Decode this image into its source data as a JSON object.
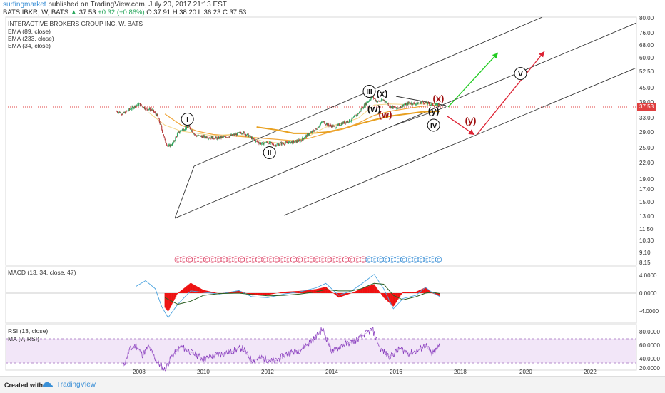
{
  "header": {
    "author": "surfingmarket",
    "published_text": "published on TradingView.com, July 20, 2017 21:13 EST",
    "symbol": "BATS:IBKR, W, BATS",
    "last": "37.53",
    "change": "+0.32 (+0.86%)",
    "open": "O:37.91",
    "high": "H:38.20",
    "low": "L:36.23",
    "close": "C:37.53"
  },
  "footer": {
    "created_with": "Created with",
    "brand": "TradingView"
  },
  "colors": {
    "candle_up": "#26a65b",
    "candle_down": "#b03030",
    "ema89": "#f0a63a",
    "ema233": "#e8a020",
    "ema34": "#f5d58a",
    "channel": "#333333",
    "green_arrow": "#22cc22",
    "red_arrow": "#dd2233",
    "wave_red": "#a01010",
    "macd_line": "#4aa3df",
    "signal_line": "#2a5e22",
    "hist": "#ee1111",
    "rsi_line": "#8a3fbf",
    "rsi_band": "#f2e6f8",
    "price_line": "#e04040",
    "last_tag": "#e04040"
  },
  "chart_data": [
    {
      "type": "candlestick",
      "title": "INTERACTIVE BROKERS GROUP INC, W, BATS",
      "indicators": [
        "EMA (89, close)",
        "EMA (233, close)",
        "EMA (34, close)"
      ],
      "y_scale": "log",
      "y_ticks": [
        "80.00",
        "76.00",
        "68.00",
        "60.00",
        "52.50",
        "45.00",
        "39.00",
        "33.00",
        "29.00",
        "25.00",
        "22.00",
        "19.00",
        "17.00",
        "15.00",
        "13.00",
        "11.50",
        "10.30",
        "9.10",
        "8.15"
      ],
      "x_ticks": [
        "2008",
        "2010",
        "2012",
        "2014",
        "2016",
        "2018",
        "2020",
        "2022"
      ],
      "last_price": "37.53",
      "price_path": [
        [
          2007.5,
          31
        ],
        [
          2007.7,
          29
        ],
        [
          2008.0,
          34
        ],
        [
          2008.2,
          37
        ],
        [
          2008.4,
          33
        ],
        [
          2008.6,
          32
        ],
        [
          2008.75,
          28
        ],
        [
          2008.9,
          20
        ],
        [
          2009.0,
          15
        ],
        [
          2009.1,
          13
        ],
        [
          2009.25,
          14
        ],
        [
          2009.4,
          18
        ],
        [
          2009.55,
          20
        ],
        [
          2009.75,
          21
        ],
        [
          2009.95,
          17
        ],
        [
          2010.3,
          16.5
        ],
        [
          2010.6,
          16
        ],
        [
          2010.9,
          16.5
        ],
        [
          2011.2,
          17.5
        ],
        [
          2011.4,
          18.5
        ],
        [
          2011.6,
          17
        ],
        [
          2011.8,
          15
        ],
        [
          2012.0,
          14
        ],
        [
          2012.2,
          14.5
        ],
        [
          2012.4,
          13.5
        ],
        [
          2012.6,
          14
        ],
        [
          2012.9,
          14.5
        ],
        [
          2013.2,
          15
        ],
        [
          2013.5,
          18
        ],
        [
          2013.7,
          20
        ],
        [
          2013.9,
          24
        ],
        [
          2014.1,
          22
        ],
        [
          2014.3,
          21
        ],
        [
          2014.5,
          23
        ],
        [
          2014.8,
          25
        ],
        [
          2015.0,
          29
        ],
        [
          2015.2,
          36
        ],
        [
          2015.45,
          44
        ],
        [
          2015.6,
          39
        ],
        [
          2015.8,
          41
        ],
        [
          2016.0,
          35
        ],
        [
          2016.2,
          33
        ],
        [
          2016.4,
          36
        ],
        [
          2016.6,
          38
        ],
        [
          2016.8,
          37
        ],
        [
          2017.0,
          39
        ],
        [
          2017.2,
          37
        ],
        [
          2017.4,
          36
        ],
        [
          2017.55,
          37.5
        ]
      ],
      "ema89": [
        [
          2009.0,
          29
        ],
        [
          2009.5,
          22
        ],
        [
          2010.0,
          19
        ],
        [
          2010.5,
          17.5
        ],
        [
          2011.0,
          17
        ],
        [
          2011.5,
          16.5
        ],
        [
          2012.0,
          16
        ],
        [
          2012.5,
          15.5
        ],
        [
          2013.0,
          15
        ],
        [
          2013.5,
          16
        ],
        [
          2014.0,
          18
        ],
        [
          2014.5,
          20
        ],
        [
          2015.0,
          23
        ],
        [
          2015.5,
          28
        ],
        [
          2016.0,
          31
        ],
        [
          2016.5,
          33
        ],
        [
          2017.0,
          35
        ],
        [
          2017.55,
          36
        ]
      ],
      "ema233": [
        [
          2011.85,
          21
        ],
        [
          2012.5,
          19.5
        ],
        [
          2013.0,
          18
        ],
        [
          2013.5,
          18
        ],
        [
          2014.0,
          18.5
        ],
        [
          2014.5,
          20
        ],
        [
          2015.0,
          22.5
        ],
        [
          2015.5,
          25
        ],
        [
          2016.0,
          27.5
        ],
        [
          2016.5,
          29
        ],
        [
          2017.0,
          30.5
        ],
        [
          2017.55,
          31
        ]
      ],
      "ema34": [
        [
          2008.5,
          30
        ],
        [
          2009.0,
          22
        ],
        [
          2009.5,
          19
        ],
        [
          2010.0,
          18
        ],
        [
          2010.5,
          17
        ],
        [
          2011.0,
          17.5
        ],
        [
          2011.5,
          17
        ],
        [
          2012.0,
          15
        ],
        [
          2012.5,
          14.2
        ],
        [
          2013.0,
          14.5
        ],
        [
          2013.5,
          17
        ],
        [
          2014.0,
          21
        ],
        [
          2014.5,
          23
        ],
        [
          2015.0,
          26
        ],
        [
          2015.5,
          36
        ],
        [
          2016.0,
          37
        ],
        [
          2016.5,
          36.5
        ],
        [
          2017.0,
          37
        ],
        [
          2017.55,
          37
        ]
      ],
      "wave_labels": [
        {
          "text": "I",
          "x": 2009.7,
          "y": 25.5,
          "color": "black",
          "circled": true
        },
        {
          "text": "II",
          "x": 2012.25,
          "y": 11.2,
          "color": "black",
          "circled": true
        },
        {
          "text": "III",
          "x": 2015.35,
          "y": 50.5,
          "color": "black",
          "circled": true
        },
        {
          "text": "(x)",
          "x": 2015.75,
          "y": 47.5,
          "color": "black",
          "circled": false
        },
        {
          "text": "(w)",
          "x": 2015.5,
          "y": 32.5,
          "color": "black",
          "circled": false
        },
        {
          "text": "(y)",
          "x": 2017.35,
          "y": 30.8,
          "color": "black",
          "circled": false
        },
        {
          "text": "(w)",
          "x": 2015.85,
          "y": 28.3,
          "color": "wave_red",
          "circled": false
        },
        {
          "text": "(x)",
          "x": 2017.5,
          "y": 42,
          "color": "wave_red",
          "circled": false
        },
        {
          "text": "(y)",
          "x": 2018.5,
          "y": 24.5,
          "color": "wave_red",
          "circled": false
        },
        {
          "text": "IV",
          "x": 2017.35,
          "y": 22,
          "color": "black",
          "circled": true
        },
        {
          "text": "V",
          "x": 2020.05,
          "y": 78,
          "color": "black",
          "circled": true
        }
      ],
      "event_badge_letter": "E",
      "events_x": [
        2009.4,
        2009.58,
        2009.76,
        2009.94,
        2010.12,
        2010.3,
        2010.48,
        2010.66,
        2010.84,
        2011.02,
        2011.2,
        2011.38,
        2011.56,
        2011.74,
        2011.92,
        2012.1,
        2012.28,
        2012.46,
        2012.64,
        2012.82,
        2013.0,
        2013.18,
        2013.36,
        2013.54,
        2013.72,
        2013.9,
        2014.08,
        2014.26,
        2014.44,
        2014.62,
        2014.8,
        2014.98,
        2015.16,
        2015.34,
        2015.52,
        2015.7,
        2015.88,
        2016.06,
        2016.24,
        2016.42,
        2016.6,
        2016.78,
        2016.96,
        2017.14,
        2017.32,
        2017.5
      ]
    },
    {
      "type": "line",
      "title": "MACD (13, 34, close, 47)",
      "y_ticks": [
        "4.0000",
        "0.0000",
        "-4.0000"
      ],
      "macd": [
        [
          2008.1,
          1.5
        ],
        [
          2008.4,
          2.8
        ],
        [
          2008.7,
          1.0
        ],
        [
          2008.9,
          -3.0
        ],
        [
          2009.1,
          -5.5
        ],
        [
          2009.4,
          -2.5
        ],
        [
          2009.8,
          0.5
        ],
        [
          2010.2,
          0.2
        ],
        [
          2010.7,
          -0.2
        ],
        [
          2011.3,
          0.6
        ],
        [
          2011.7,
          -0.8
        ],
        [
          2012.2,
          -1.0
        ],
        [
          2012.7,
          -0.2
        ],
        [
          2013.2,
          0.3
        ],
        [
          2013.7,
          1.2
        ],
        [
          2014.0,
          2.2
        ],
        [
          2014.4,
          -0.5
        ],
        [
          2014.8,
          0.5
        ],
        [
          2015.1,
          2.0
        ],
        [
          2015.5,
          4.2
        ],
        [
          2015.8,
          1.0
        ],
        [
          2016.1,
          -3.5
        ],
        [
          2016.4,
          -1.2
        ],
        [
          2016.8,
          -0.5
        ],
        [
          2017.1,
          1.3
        ],
        [
          2017.3,
          0.2
        ],
        [
          2017.55,
          -0.8
        ]
      ],
      "signal": [
        [
          2009.0,
          -1.0
        ],
        [
          2009.4,
          -2.5
        ],
        [
          2009.8,
          -1.8
        ],
        [
          2010.2,
          -0.5
        ],
        [
          2010.7,
          -0.1
        ],
        [
          2011.3,
          0.0
        ],
        [
          2011.7,
          -0.3
        ],
        [
          2012.2,
          -0.6
        ],
        [
          2012.7,
          -0.5
        ],
        [
          2013.2,
          -0.2
        ],
        [
          2013.7,
          0.3
        ],
        [
          2014.0,
          0.8
        ],
        [
          2014.4,
          0.5
        ],
        [
          2014.8,
          0.5
        ],
        [
          2015.1,
          1.0
        ],
        [
          2015.5,
          2.2
        ],
        [
          2015.8,
          2.0
        ],
        [
          2016.1,
          -0.5
        ],
        [
          2016.4,
          -1.5
        ],
        [
          2016.8,
          -0.8
        ],
        [
          2017.1,
          0.0
        ],
        [
          2017.3,
          0.2
        ],
        [
          2017.55,
          -0.1
        ]
      ]
    },
    {
      "type": "line",
      "title": "RSI (13, close)",
      "subtitle": "MA (7, RSI)",
      "y_ticks": [
        "80.0000",
        "60.0000",
        "40.0000",
        "20.0000"
      ],
      "rsi": [
        [
          2007.7,
          30
        ],
        [
          2007.9,
          55
        ],
        [
          2008.1,
          62
        ],
        [
          2008.3,
          48
        ],
        [
          2008.5,
          60
        ],
        [
          2008.75,
          38
        ],
        [
          2009.0,
          26
        ],
        [
          2009.2,
          45
        ],
        [
          2009.5,
          60
        ],
        [
          2009.8,
          52
        ],
        [
          2010.2,
          42
        ],
        [
          2010.6,
          48
        ],
        [
          2011.0,
          52
        ],
        [
          2011.4,
          58
        ],
        [
          2011.7,
          40
        ],
        [
          2012.0,
          44
        ],
        [
          2012.4,
          38
        ],
        [
          2012.8,
          50
        ],
        [
          2013.2,
          55
        ],
        [
          2013.6,
          70
        ],
        [
          2013.9,
          86
        ],
        [
          2014.2,
          52
        ],
        [
          2014.5,
          62
        ],
        [
          2014.9,
          68
        ],
        [
          2015.2,
          78
        ],
        [
          2015.45,
          85
        ],
        [
          2015.7,
          56
        ],
        [
          2016.0,
          45
        ],
        [
          2016.3,
          57
        ],
        [
          2016.6,
          50
        ],
        [
          2016.9,
          55
        ],
        [
          2017.1,
          63
        ],
        [
          2017.3,
          48
        ],
        [
          2017.55,
          62
        ]
      ],
      "overbought": 70,
      "oversold": 30
    }
  ]
}
